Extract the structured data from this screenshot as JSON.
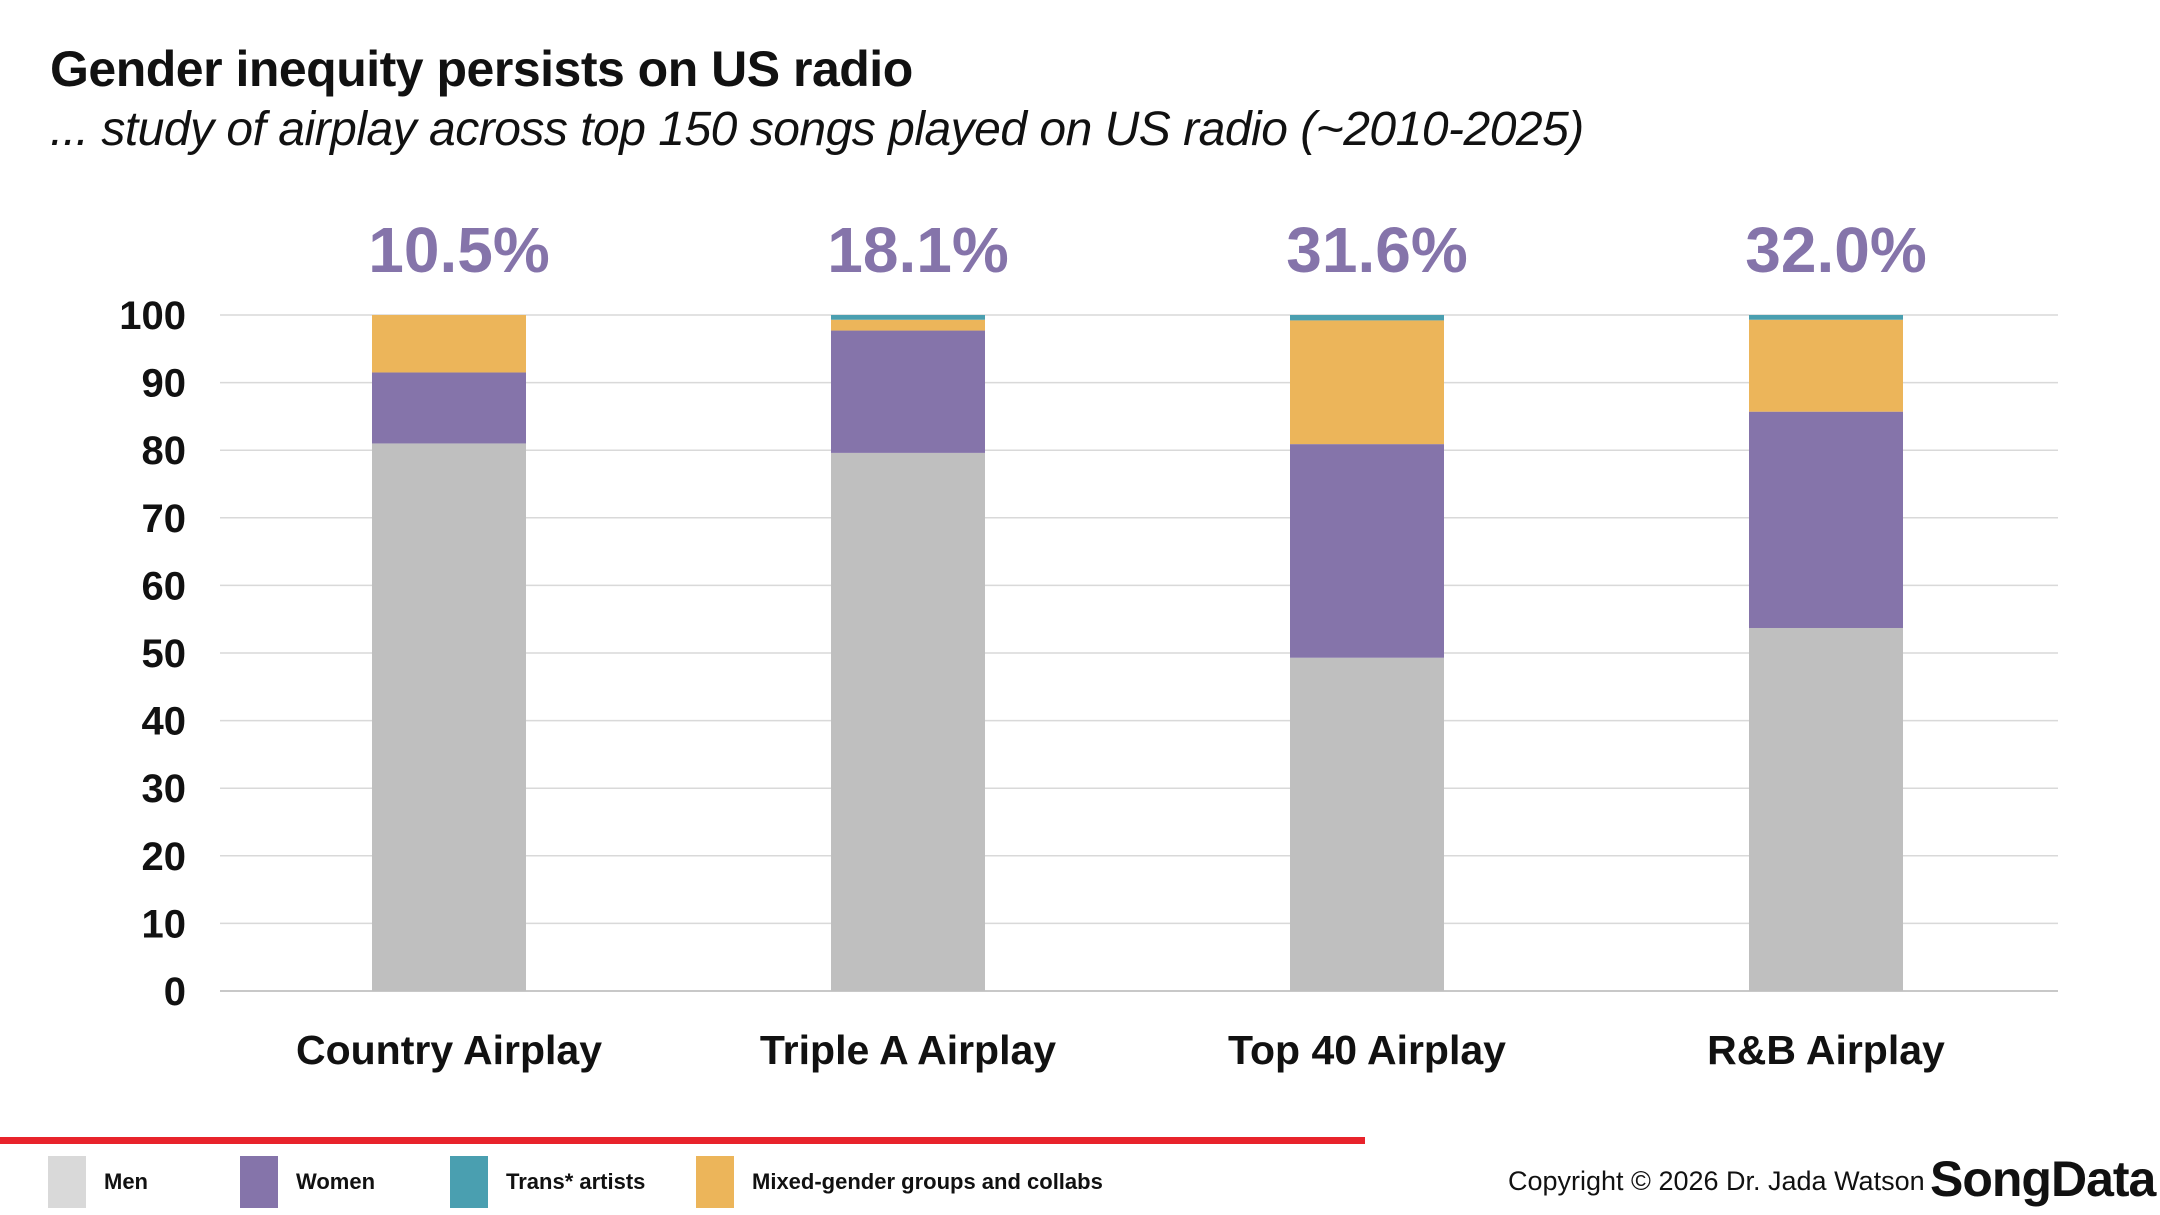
{
  "header": {
    "title": "Gender inequity persists on US radio",
    "subtitle": "... study of airplay across top 150 songs played on US radio (~2010-2025)"
  },
  "chart_data": {
    "type": "bar",
    "stacked": true,
    "categories": [
      "Country Airplay",
      "Triple A Airplay",
      "Top 40 Airplay",
      "R&B Airplay"
    ],
    "top_labels": [
      "10.5%",
      "18.1%",
      "31.6%",
      "32.0%"
    ],
    "series": [
      {
        "name": "Men",
        "color": "#bfbfbf",
        "values": [
          81.0,
          79.6,
          49.3,
          53.7
        ]
      },
      {
        "name": "Women",
        "color": "#8574aa",
        "values": [
          10.5,
          18.1,
          31.6,
          32.0
        ]
      },
      {
        "name": "Mixed-gender groups and collabs",
        "color": "#ecb55a",
        "values": [
          8.5,
          1.6,
          18.3,
          13.6
        ]
      },
      {
        "name": "Trans* artists",
        "color": "#4a9fb0",
        "values": [
          0.0,
          0.7,
          0.8,
          0.7
        ]
      }
    ],
    "ylim": [
      0,
      100
    ],
    "yticks": [
      "0",
      "10",
      "20",
      "30",
      "40",
      "50",
      "60",
      "70",
      "80",
      "90",
      "100"
    ],
    "grid": true,
    "label_color": "#8574aa"
  },
  "legend": [
    {
      "label": "Men",
      "color": "#d9d9d9"
    },
    {
      "label": "Women",
      "color": "#8574aa"
    },
    {
      "label": "Trans* artists",
      "color": "#4a9fb0"
    },
    {
      "label": "Mixed-gender groups and collabs",
      "color": "#ecb55a"
    }
  ],
  "footer": {
    "copyright": "Copyright © 2026 Dr. Jada Watson",
    "logo_text": "SongData",
    "accent_color": "#e8232b"
  }
}
